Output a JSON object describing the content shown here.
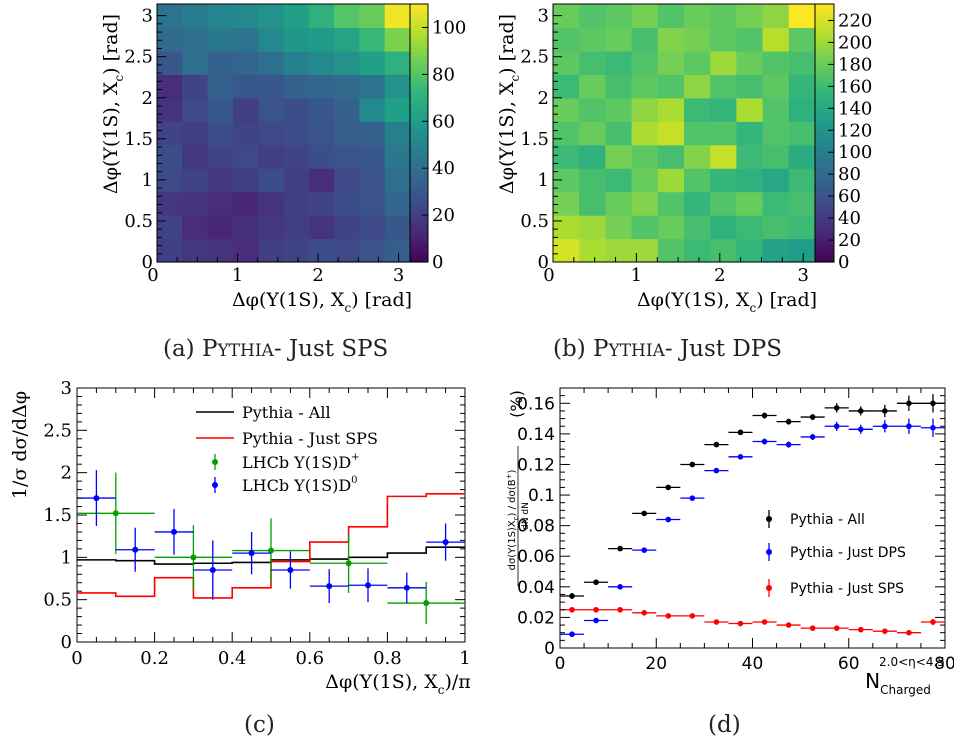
{
  "chart_data": [
    {
      "type": "heatmap",
      "caption": "(a) PYTHIA- Just SPS",
      "xlabel": "Δφ(Y(1S), X",
      "xlabel_sub": "c",
      "xlabel_end": ") [rad]",
      "ylabel": "Δφ(Y(1S), X",
      "ylabel_sub": "c",
      "ylabel_end": ") [rad]",
      "xlim": [
        0,
        3.1416
      ],
      "ylim": [
        0,
        3.1416
      ],
      "x_ticks": [
        "0",
        "1",
        "2",
        "3"
      ],
      "y_ticks": [
        "0",
        "0.5",
        "1",
        "1.5",
        "2",
        "2.5",
        "3"
      ],
      "colorbar": {
        "min": 0,
        "max": 110,
        "ticks": [
          "0",
          "20",
          "40",
          "60",
          "80",
          "100"
        ],
        "palette": "viridis"
      },
      "z": [
        [
          20,
          18,
          16,
          14,
          20,
          22,
          26,
          24,
          28,
          32
        ],
        [
          22,
          14,
          12,
          15,
          18,
          20,
          16,
          22,
          24,
          30
        ],
        [
          18,
          16,
          14,
          12,
          16,
          20,
          22,
          26,
          28,
          36
        ],
        [
          24,
          22,
          18,
          20,
          26,
          20,
          14,
          24,
          28,
          40
        ],
        [
          26,
          18,
          22,
          24,
          20,
          22,
          26,
          28,
          30,
          44
        ],
        [
          22,
          20,
          26,
          22,
          24,
          26,
          28,
          32,
          34,
          48
        ],
        [
          16,
          24,
          30,
          20,
          28,
          26,
          30,
          34,
          52,
          62
        ],
        [
          14,
          22,
          34,
          30,
          30,
          34,
          36,
          38,
          42,
          56
        ],
        [
          30,
          40,
          34,
          36,
          40,
          48,
          52,
          56,
          62,
          70
        ],
        [
          38,
          40,
          44,
          42,
          52,
          58,
          60,
          64,
          74,
          88
        ],
        [
          42,
          46,
          50,
          52,
          56,
          62,
          70,
          80,
          84,
          108
        ]
      ]
    },
    {
      "type": "heatmap",
      "caption": "(b) PYTHIA- Just DPS",
      "xlabel": "Δφ(Y(1S), X",
      "xlabel_sub": "c",
      "xlabel_end": ") [rad]",
      "ylabel": "Δφ(Y(1S), X",
      "ylabel_sub": "c",
      "ylabel_end": ") [rad]",
      "xlim": [
        0,
        3.1416
      ],
      "ylim": [
        0,
        3.1416
      ],
      "x_ticks": [
        "0",
        "1",
        "2",
        "3"
      ],
      "y_ticks": [
        "0",
        "0.5",
        "1",
        "1.5",
        "2",
        "2.5",
        "3"
      ],
      "colorbar": {
        "min": 0,
        "max": 235,
        "ticks": [
          "0",
          "20",
          "40",
          "60",
          "80",
          "100",
          "120",
          "140",
          "160",
          "180",
          "200",
          "220"
        ],
        "palette": "viridis"
      },
      "z": [
        [
          220,
          205,
          200,
          200,
          170,
          160,
          165,
          155,
          135,
          130
        ],
        [
          205,
          200,
          185,
          170,
          180,
          165,
          150,
          160,
          165,
          160
        ],
        [
          185,
          165,
          180,
          190,
          170,
          155,
          170,
          180,
          160,
          165
        ],
        [
          175,
          165,
          160,
          180,
          200,
          170,
          155,
          150,
          140,
          160
        ],
        [
          160,
          150,
          185,
          175,
          165,
          190,
          215,
          160,
          165,
          145
        ],
        [
          170,
          180,
          165,
          205,
          215,
          170,
          170,
          155,
          170,
          165
        ],
        [
          180,
          170,
          175,
          195,
          205,
          160,
          155,
          205,
          170,
          150
        ],
        [
          160,
          180,
          165,
          175,
          170,
          195,
          170,
          165,
          175,
          155
        ],
        [
          175,
          165,
          160,
          170,
          185,
          175,
          200,
          180,
          170,
          165
        ],
        [
          170,
          175,
          180,
          165,
          190,
          185,
          175,
          170,
          210,
          175
        ],
        [
          180,
          170,
          175,
          185,
          170,
          180,
          175,
          185,
          195,
          235
        ]
      ]
    },
    {
      "type": "line",
      "caption": "(c)",
      "xlabel": "Δφ(Y(1S), X",
      "xlabel_sub": "c",
      "xlabel_end": ")/π",
      "ylabel": "1/σ dσ/dΔφ",
      "xlim": [
        0,
        1
      ],
      "ylim": [
        0,
        3
      ],
      "x_ticks": [
        "0",
        "0.2",
        "0.4",
        "0.6",
        "0.8",
        "1"
      ],
      "y_ticks": [
        "0",
        "0.5",
        "1",
        "1.5",
        "2",
        "2.5",
        "3"
      ],
      "legend": [
        {
          "label": "Pythia - All",
          "sup": "",
          "color": "#000000",
          "style": "line"
        },
        {
          "label": "Pythia - Just SPS",
          "sup": "",
          "color": "#ff0000",
          "style": "line"
        },
        {
          "label": "LHCb Y(1S)D",
          "sup": "+",
          "color": "#00a000",
          "style": "marker"
        },
        {
          "label": "LHCb Y(1S)D",
          "sup": "0",
          "color": "#0000ff",
          "style": "marker"
        }
      ],
      "series": [
        {
          "name": "Pythia - All",
          "kind": "step",
          "color": "#000000",
          "edges": [
            0,
            0.1,
            0.2,
            0.3,
            0.4,
            0.5,
            0.6,
            0.7,
            0.8,
            0.9,
            1.0
          ],
          "values": [
            0.97,
            0.96,
            0.92,
            0.93,
            0.94,
            0.97,
            0.98,
            1.0,
            1.05,
            1.12
          ]
        },
        {
          "name": "Pythia - Just SPS",
          "kind": "step",
          "color": "#ff0000",
          "edges": [
            0,
            0.1,
            0.2,
            0.3,
            0.4,
            0.5,
            0.6,
            0.7,
            0.8,
            0.9,
            1.0
          ],
          "values": [
            0.58,
            0.54,
            0.76,
            0.52,
            0.64,
            0.95,
            1.18,
            1.36,
            1.72,
            1.75
          ]
        },
        {
          "name": "LHCb Y(1S)D+",
          "kind": "points",
          "color": "#00a000",
          "x": [
            0.1,
            0.3,
            0.5,
            0.7,
            0.9
          ],
          "xerr": 0.1,
          "y": [
            1.52,
            1.0,
            1.08,
            0.93,
            0.46
          ],
          "yerr": [
            0.48,
            0.38,
            0.38,
            0.35,
            0.25
          ]
        },
        {
          "name": "LHCb Y(1S)D0",
          "kind": "points",
          "color": "#0000ff",
          "x": [
            0.05,
            0.15,
            0.25,
            0.35,
            0.45,
            0.55,
            0.65,
            0.75,
            0.85,
            0.95
          ],
          "xerr": 0.05,
          "y": [
            1.7,
            1.09,
            1.3,
            0.85,
            1.05,
            0.85,
            0.66,
            0.67,
            0.64,
            1.18
          ],
          "yerr": [
            0.33,
            0.26,
            0.27,
            0.35,
            0.25,
            0.22,
            0.2,
            0.2,
            0.18,
            0.22
          ]
        }
      ]
    },
    {
      "type": "scatter",
      "caption": "(d)",
      "ylabel": "(%)",
      "xlabel": "N",
      "xlabel_sub": "Charged",
      "xlabel_sup": "2.0<η<4.5",
      "xlim": [
        0,
        80
      ],
      "ylim": [
        0,
        0.17
      ],
      "x_ticks": [
        "0",
        "20",
        "40",
        "60",
        "80"
      ],
      "y_ticks": [
        "0",
        "0.02",
        "0.04",
        "0.06",
        "0.08",
        "0.1",
        "0.12",
        "0.14",
        "0.16"
      ],
      "legend": [
        {
          "label": "Pythia - All",
          "color": "#000000"
        },
        {
          "label": "Pythia - Just DPS",
          "color": "#0000ff"
        },
        {
          "label": "Pythia - Just SPS",
          "color": "#ff0000"
        }
      ],
      "series": [
        {
          "name": "Pythia - All",
          "color": "#000000",
          "xerr": 2.5,
          "x": [
            2.5,
            7.5,
            12.5,
            17.5,
            22.5,
            27.5,
            32.5,
            37.5,
            42.5,
            47.5,
            52.5,
            57.5,
            62.5,
            67.5,
            72.5,
            77.5
          ],
          "y": [
            0.034,
            0.043,
            0.065,
            0.088,
            0.105,
            0.12,
            0.133,
            0.141,
            0.152,
            0.148,
            0.151,
            0.157,
            0.155,
            0.155,
            0.16,
            0.16
          ],
          "yerr": [
            0.002,
            0.001,
            0.001,
            0.001,
            0.001,
            0.001,
            0.001,
            0.001,
            0.002,
            0.002,
            0.002,
            0.003,
            0.003,
            0.004,
            0.005,
            0.006
          ]
        },
        {
          "name": "Pythia - Just DPS",
          "color": "#0000ff",
          "xerr": 2.5,
          "x": [
            2.5,
            7.5,
            12.5,
            17.5,
            22.5,
            27.5,
            32.5,
            37.5,
            42.5,
            47.5,
            52.5,
            57.5,
            62.5,
            67.5,
            72.5,
            77.5
          ],
          "y": [
            0.009,
            0.018,
            0.04,
            0.064,
            0.084,
            0.098,
            0.116,
            0.125,
            0.135,
            0.133,
            0.138,
            0.145,
            0.143,
            0.145,
            0.145,
            0.144
          ],
          "yerr": [
            0.001,
            0.001,
            0.001,
            0.001,
            0.001,
            0.001,
            0.001,
            0.001,
            0.002,
            0.002,
            0.002,
            0.003,
            0.003,
            0.004,
            0.005,
            0.006
          ]
        },
        {
          "name": "Pythia - Just SPS",
          "color": "#ff0000",
          "xerr": 2.5,
          "x": [
            2.5,
            7.5,
            12.5,
            17.5,
            22.5,
            27.5,
            32.5,
            37.5,
            42.5,
            47.5,
            52.5,
            57.5,
            62.5,
            67.5,
            72.5,
            77.5
          ],
          "y": [
            0.025,
            0.025,
            0.025,
            0.023,
            0.021,
            0.021,
            0.017,
            0.016,
            0.017,
            0.015,
            0.013,
            0.013,
            0.012,
            0.011,
            0.01,
            0.017
          ],
          "yerr": [
            0.001,
            0.001,
            0.001,
            0.001,
            0.001,
            0.001,
            0.001,
            0.001,
            0.001,
            0.001,
            0.001,
            0.001,
            0.001,
            0.001,
            0.001,
            0.002
          ]
        }
      ]
    }
  ]
}
